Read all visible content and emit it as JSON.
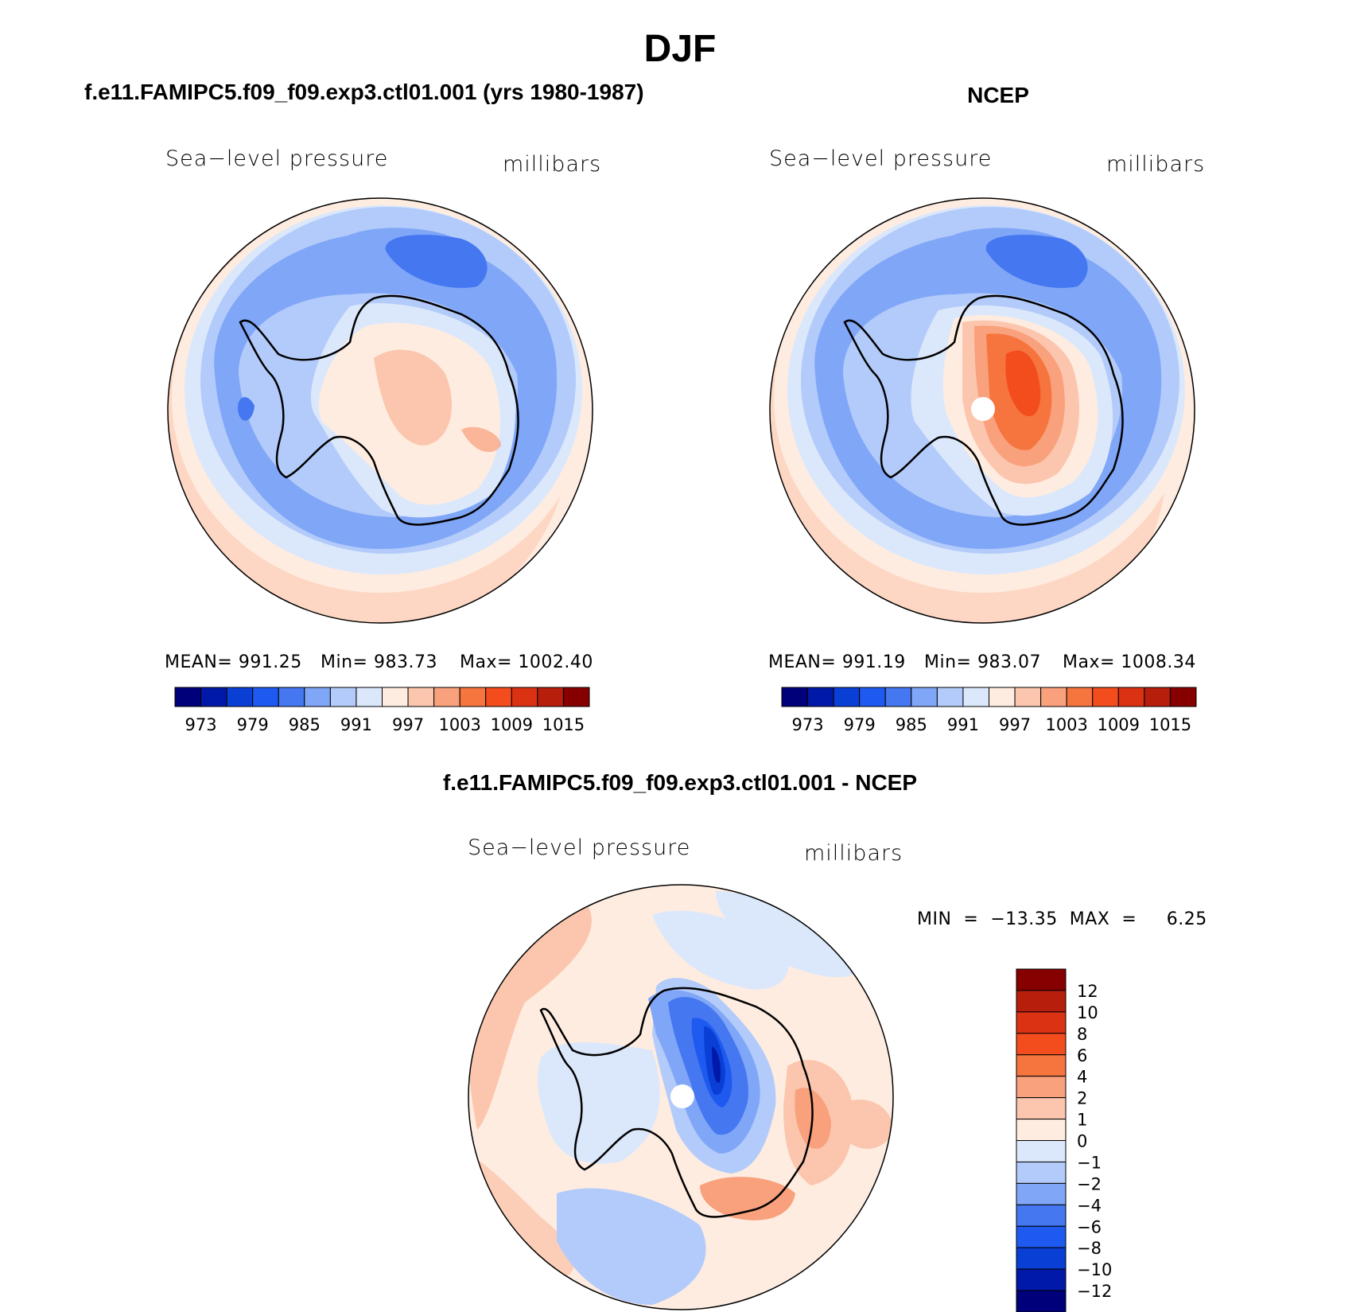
{
  "figure": {
    "title": "DJF",
    "difference_title": "f.e11.FAMIPC5.f09_f09.exp3.ctl01.001 - NCEP"
  },
  "panels": {
    "model": {
      "title": "f.e11.FAMIPC5.f09_f09.exp3.ctl01.001 (yrs 1980-1987)",
      "variable_label": "Sea−level pressure",
      "units_label": "millibars",
      "mean_text": "MEAN=  991.25",
      "min_text": "Min=  983.73",
      "max_text": "Max=  1002.40"
    },
    "obs": {
      "title": "NCEP",
      "variable_label": "Sea−level pressure",
      "units_label": "millibars",
      "mean_text": "MEAN=  991.19",
      "min_text": "Min=  983.07",
      "max_text": "Max=  1008.34"
    },
    "diff": {
      "variable_label": "Sea−level pressure",
      "units_label": "millibars",
      "minmax_text": "MIN  =  −13.35  MAX  =     6.25"
    }
  },
  "chart_data": [
    {
      "type": "heatmap",
      "projection": "south-polar-stereographic",
      "title": "f.e11.FAMIPC5.f09_f09.exp3.ctl01.001 (yrs 1980-1987)",
      "subtitle": "Sea-level pressure",
      "units": "millibars",
      "stats": {
        "mean": 991.25,
        "min": 983.73,
        "max": 1002.4
      },
      "colorbar": {
        "orientation": "horizontal",
        "levels": [
          970,
          973,
          976,
          979,
          982,
          985,
          988,
          991,
          994,
          997,
          1000,
          1003,
          1006,
          1009,
          1012,
          1015
        ],
        "tick_labels": [
          "973",
          "979",
          "985",
          "991",
          "997",
          "1003",
          "1009",
          "1015"
        ],
        "colors": [
          "#00007a",
          "#0019a8",
          "#0a3fd6",
          "#1e5af0",
          "#4477f0",
          "#80a6f7",
          "#b3cbfa",
          "#dbe8fb",
          "#feece0",
          "#fbc6ad",
          "#f9a07c",
          "#f6743e",
          "#f44d1d",
          "#dc3214",
          "#b81e0c",
          "#860000"
        ]
      }
    },
    {
      "type": "heatmap",
      "projection": "south-polar-stereographic",
      "title": "NCEP",
      "subtitle": "Sea-level pressure",
      "units": "millibars",
      "stats": {
        "mean": 991.19,
        "min": 983.07,
        "max": 1008.34
      },
      "colorbar": {
        "orientation": "horizontal",
        "levels": [
          970,
          973,
          976,
          979,
          982,
          985,
          988,
          991,
          994,
          997,
          1000,
          1003,
          1006,
          1009,
          1012,
          1015
        ],
        "tick_labels": [
          "973",
          "979",
          "985",
          "991",
          "997",
          "1003",
          "1009",
          "1015"
        ],
        "colors": [
          "#00007a",
          "#0019a8",
          "#0a3fd6",
          "#1e5af0",
          "#4477f0",
          "#80a6f7",
          "#b3cbfa",
          "#dbe8fb",
          "#feece0",
          "#fbc6ad",
          "#f9a07c",
          "#f6743e",
          "#f44d1d",
          "#dc3214",
          "#b81e0c",
          "#860000"
        ]
      }
    },
    {
      "type": "heatmap",
      "projection": "south-polar-stereographic",
      "title": "f.e11.FAMIPC5.f09_f09.exp3.ctl01.001 - NCEP",
      "subtitle": "Sea-level pressure",
      "units": "millibars",
      "stats": {
        "min": -13.35,
        "max": 6.25
      },
      "colorbar": {
        "orientation": "vertical",
        "tick_labels": [
          "12",
          "10",
          "8",
          "6",
          "4",
          "2",
          "1",
          "0",
          "−1",
          "−2",
          "−4",
          "−6",
          "−8",
          "−10",
          "−12"
        ],
        "colors": [
          "#860000",
          "#b81e0c",
          "#dc3214",
          "#f44d1d",
          "#f6743e",
          "#f9a07c",
          "#fbc6ad",
          "#feece0",
          "#dbe8fb",
          "#b3cbfa",
          "#80a6f7",
          "#4477f0",
          "#1e5af0",
          "#0a3fd6",
          "#0019a8",
          "#00007a"
        ]
      }
    }
  ]
}
